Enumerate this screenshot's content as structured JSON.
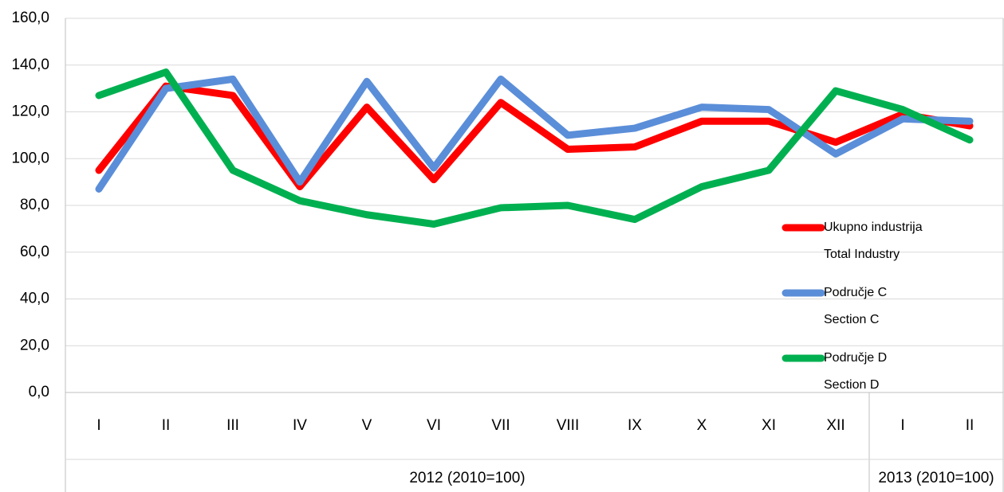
{
  "chart_data": {
    "type": "line",
    "groups": [
      {
        "label": "2012 (2010=100)",
        "categories": [
          "I",
          "II",
          "III",
          "IV",
          "V",
          "VI",
          "VII",
          "VIII",
          "IX",
          "X",
          "XI",
          "XII"
        ]
      },
      {
        "label": "2013 (2010=100)",
        "categories": [
          "I",
          "II"
        ]
      }
    ],
    "series": [
      {
        "name": [
          "Ukupno industrija",
          "Total Industry"
        ],
        "color": "#ff0000",
        "values": [
          95,
          131,
          127,
          88,
          122,
          91,
          124,
          104,
          105,
          116,
          116,
          107,
          119,
          114
        ]
      },
      {
        "name": [
          "Područje C",
          "Section C"
        ],
        "color": "#5b8ed8",
        "values": [
          87,
          130,
          134,
          90,
          133,
          96,
          134,
          110,
          113,
          122,
          121,
          102,
          117,
          116
        ]
      },
      {
        "name": [
          "Područje D",
          "Section D"
        ],
        "color": "#00b050",
        "values": [
          127,
          137,
          95,
          82,
          76,
          72,
          79,
          80,
          74,
          88,
          95,
          129,
          121,
          108
        ]
      }
    ],
    "ylim": [
      0,
      160
    ],
    "yticks": [
      {
        "value": 0,
        "label": "0,0"
      },
      {
        "value": 20,
        "label": "20,0"
      },
      {
        "value": 40,
        "label": "40,0"
      },
      {
        "value": 60,
        "label": "60,0"
      },
      {
        "value": 80,
        "label": "80,0"
      },
      {
        "value": 100,
        "label": "100,0"
      },
      {
        "value": 120,
        "label": "120,0"
      },
      {
        "value": 140,
        "label": "140,0"
      },
      {
        "value": 160,
        "label": "160,0"
      }
    ],
    "grid": true
  }
}
